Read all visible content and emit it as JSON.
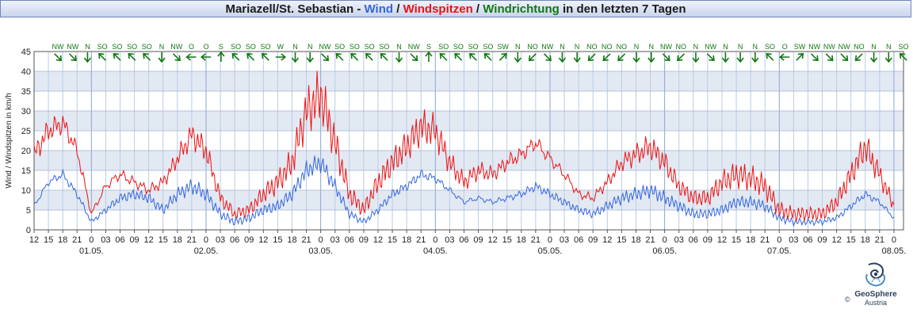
{
  "title": {
    "prefix": "Mariazell/St. Sebastian - ",
    "wind": "Wind",
    "sep1": " / ",
    "gusts": "Windspitzen",
    "sep2": " / ",
    "direction": "Windrichtung",
    "suffix": " in den letzten 7 Tagen"
  },
  "colors": {
    "wind": "#3366dd",
    "gusts": "#ee1111",
    "direction": "#117711"
  },
  "logo": {
    "brand": "GeoSphere",
    "country": "Austria",
    "copyright": "©"
  },
  "chart_data": {
    "type": "line",
    "ylabel": "Wind / Windspitzen in km/h",
    "ylim": [
      0,
      45
    ],
    "yticks": [
      0,
      5,
      10,
      15,
      20,
      25,
      30,
      35,
      40,
      45
    ],
    "x_range_hours": [
      -12,
      170
    ],
    "hour_tick_labels": [
      "12",
      "15",
      "18",
      "21",
      "0",
      "03",
      "06",
      "09",
      "12",
      "15",
      "18",
      "21",
      "0",
      "03",
      "06",
      "09",
      "12",
      "15",
      "18",
      "21",
      "0",
      "03",
      "06",
      "09",
      "12",
      "15",
      "18",
      "21",
      "0",
      "03",
      "06",
      "09",
      "12",
      "15",
      "18",
      "21",
      "0",
      "03",
      "06",
      "09",
      "12",
      "15",
      "18",
      "21",
      "0",
      "03",
      "06",
      "09",
      "12",
      "15",
      "18",
      "21",
      "0",
      "03",
      "06",
      "09",
      "12",
      "15",
      "18",
      "21",
      "0",
      "03"
    ],
    "date_labels": [
      "01.05.",
      "02.05.",
      "03.05.",
      "04.05.",
      "05.05.",
      "06.05.",
      "07.05.",
      "08.05."
    ],
    "grid": true,
    "direction_labels": [
      "NW",
      "NW",
      "N",
      "SO",
      "SO",
      "SO",
      "SO",
      "N",
      "NW",
      "O",
      "O",
      "S",
      "SO",
      "SO",
      "SO",
      "W",
      "N",
      "N",
      "NW",
      "SO",
      "SO",
      "SO",
      "SO",
      "N",
      "NW",
      "S",
      "SO",
      "SO",
      "SO",
      "SO",
      "SW",
      "N",
      "NO",
      "NW",
      "N",
      "N",
      "NO",
      "NO",
      "NO",
      "N",
      "N",
      "NW",
      "NO",
      "N",
      "NW",
      "N",
      "N",
      "N",
      "SO",
      "O",
      "SW",
      "NW",
      "NW",
      "NW",
      "NO",
      "N",
      "N",
      "SO"
    ],
    "direction_angles_deg": [
      315,
      315,
      0,
      135,
      135,
      135,
      135,
      0,
      315,
      90,
      90,
      180,
      135,
      135,
      135,
      270,
      0,
      0,
      315,
      135,
      135,
      135,
      135,
      0,
      315,
      180,
      135,
      135,
      135,
      135,
      225,
      0,
      45,
      315,
      0,
      0,
      45,
      45,
      45,
      0,
      0,
      315,
      45,
      0,
      315,
      0,
      0,
      0,
      135,
      90,
      225,
      315,
      315,
      315,
      45,
      0,
      0,
      135
    ],
    "series": [
      {
        "name": "Wind",
        "color": "#3366dd",
        "x_hours": [
          -12,
          -9,
          -6,
          -3,
          0,
          3,
          6,
          9,
          12,
          15,
          18,
          21,
          24,
          27,
          30,
          33,
          36,
          39,
          42,
          45,
          48,
          51,
          54,
          57,
          60,
          63,
          66,
          69,
          72,
          75,
          78,
          81,
          84,
          87,
          90,
          93,
          96,
          99,
          102,
          105,
          108,
          111,
          114,
          117,
          120,
          123,
          126,
          129,
          132,
          135,
          138,
          141,
          144,
          147,
          150,
          153,
          156,
          159,
          162,
          165,
          168
        ],
        "values": [
          6,
          12,
          14,
          9,
          2,
          5,
          8,
          9,
          8,
          5,
          9,
          11,
          9,
          4,
          2,
          3,
          5,
          6,
          9,
          15,
          17,
          11,
          4,
          2,
          5,
          9,
          11,
          14,
          13,
          10,
          7,
          8,
          7,
          8,
          9,
          11,
          9,
          7,
          5,
          4,
          6,
          8,
          9,
          10,
          8,
          6,
          4,
          4,
          5,
          7,
          7,
          6,
          3,
          2,
          2,
          2,
          3,
          6,
          9,
          7,
          3
        ]
      },
      {
        "name": "Windspitzen",
        "color": "#ee1111",
        "x_hours": [
          -12,
          -9,
          -6,
          -3,
          0,
          3,
          6,
          9,
          12,
          15,
          18,
          21,
          24,
          27,
          30,
          33,
          36,
          39,
          42,
          45,
          48,
          51,
          54,
          57,
          60,
          63,
          66,
          69,
          72,
          75,
          78,
          81,
          84,
          87,
          90,
          93,
          96,
          99,
          102,
          105,
          108,
          111,
          114,
          117,
          120,
          123,
          126,
          129,
          132,
          135,
          138,
          141,
          144,
          147,
          150,
          153,
          156,
          159,
          162,
          165,
          168
        ],
        "values": [
          19,
          25,
          27,
          20,
          4,
          11,
          14,
          12,
          10,
          12,
          18,
          24,
          20,
          8,
          4,
          5,
          9,
          12,
          17,
          30,
          34,
          22,
          9,
          5,
          12,
          17,
          21,
          26,
          25,
          17,
          12,
          15,
          14,
          17,
          19,
          22,
          18,
          14,
          9,
          8,
          12,
          17,
          19,
          21,
          17,
          11,
          8,
          8,
          12,
          14,
          13,
          11,
          5,
          4,
          4,
          4,
          7,
          14,
          21,
          14,
          6
        ]
      }
    ]
  }
}
